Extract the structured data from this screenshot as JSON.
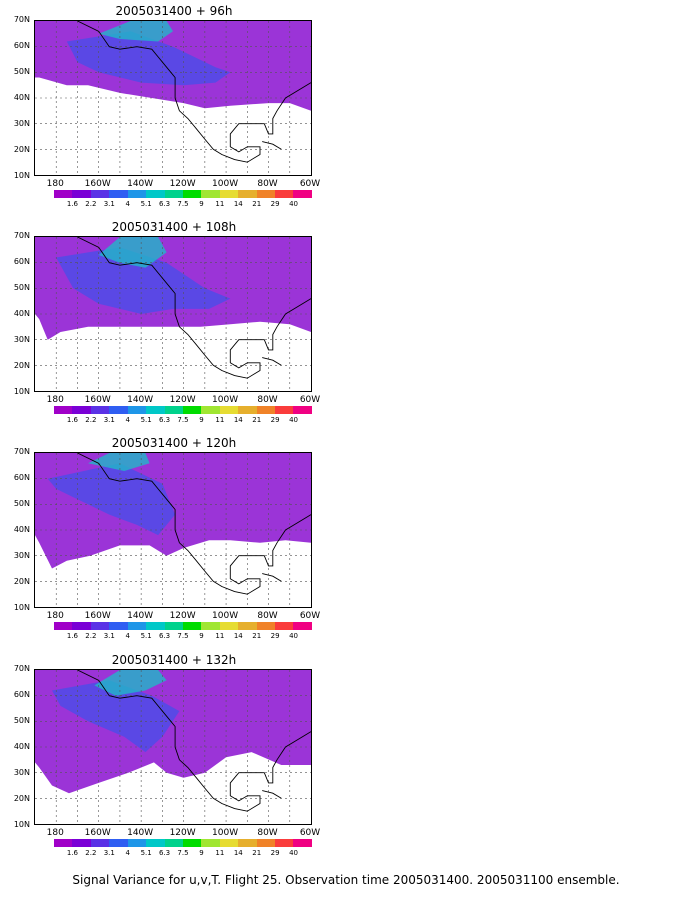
{
  "panels": [
    {
      "title": "2005031400 + 96h"
    },
    {
      "title": "2005031400 + 108h"
    },
    {
      "title": "2005031400 + 120h"
    },
    {
      "title": "2005031400 + 132h"
    }
  ],
  "lat_labels": [
    "70N",
    "60N",
    "50N",
    "40N",
    "30N",
    "20N",
    "10N"
  ],
  "lon_labels": [
    "180",
    "160W",
    "140W",
    "120W",
    "100W",
    "80W",
    "60W"
  ],
  "colorbar": {
    "labels": [
      "1.6",
      "2.2",
      "3.1",
      "4",
      "5.1",
      "6.3",
      "7.5",
      "9",
      "11",
      "14",
      "21",
      "29",
      "40"
    ],
    "colors": [
      "#a000c8",
      "#7a00d6",
      "#5a32e6",
      "#2f5ef2",
      "#1e96e8",
      "#00c8c8",
      "#00d28c",
      "#00dc00",
      "#a0e632",
      "#e6dc32",
      "#e6af2d",
      "#f08228",
      "#fa3c3c",
      "#f00082"
    ]
  },
  "caption": "Signal Variance for u,v,T. Flight 25. Observation time 2005031400. 2005031100 ensemble."
}
